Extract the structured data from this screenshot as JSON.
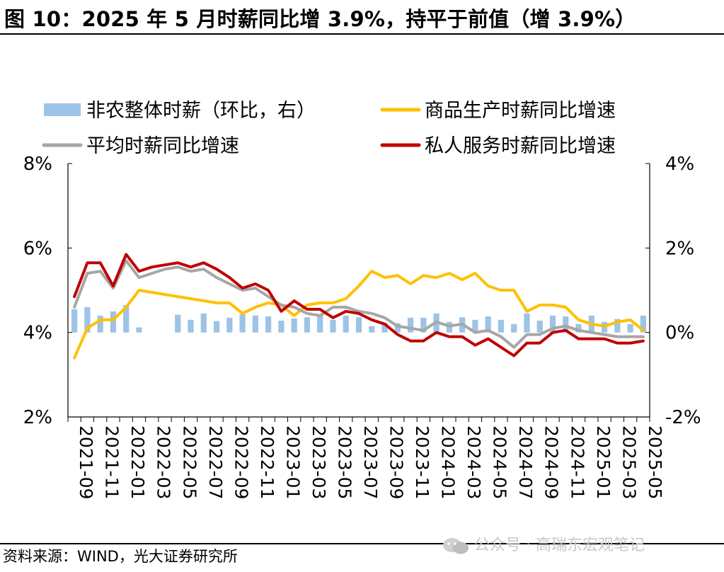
{
  "title": "图 10：2025 年 5 月时薪同比增 3.9%，持平于前值（增 3.9%）",
  "source": "资料来源：WIND，光大证券研究所",
  "watermark": "公众号 · 高瑞东宏观笔记",
  "colors": {
    "bar": "#9dc3e6",
    "goods": "#ffc000",
    "average": "#a6a6a6",
    "private_services": "#c00000"
  },
  "chart_data": {
    "type": "bar+line",
    "x": [
      "2021-09",
      "2021-10",
      "2021-11",
      "2021-12",
      "2022-01",
      "2022-02",
      "2022-03",
      "2022-04",
      "2022-05",
      "2022-06",
      "2022-07",
      "2022-08",
      "2022-09",
      "2022-10",
      "2022-11",
      "2022-12",
      "2023-01",
      "2023-02",
      "2023-03",
      "2023-04",
      "2023-05",
      "2023-06",
      "2023-07",
      "2023-08",
      "2023-09",
      "2023-10",
      "2023-11",
      "2023-12",
      "2024-01",
      "2024-02",
      "2024-03",
      "2024-04",
      "2024-05",
      "2024-06",
      "2024-07",
      "2024-08",
      "2024-09",
      "2024-10",
      "2024-11",
      "2024-12",
      "2025-01",
      "2025-02",
      "2025-03",
      "2025-04",
      "2025-05"
    ],
    "x_tick_labels": [
      "2021-09",
      "2021-11",
      "2022-01",
      "2022-03",
      "2022-05",
      "2022-07",
      "2022-09",
      "2022-11",
      "2023-01",
      "2023-03",
      "2023-05",
      "2023-07",
      "2023-09",
      "2023-11",
      "2024-01",
      "2024-03",
      "2024-05",
      "2024-07",
      "2024-09",
      "2024-11",
      "2025-01",
      "2025-03",
      "2025-05"
    ],
    "left_axis": {
      "ylim": [
        2,
        8
      ],
      "ticks": [
        "8%",
        "6%",
        "4%",
        "2%"
      ],
      "tick_values": [
        8,
        6,
        4,
        2
      ]
    },
    "right_axis": {
      "ylim": [
        -2,
        4
      ],
      "ticks": [
        "4%",
        "2%",
        "0%",
        "-2%"
      ],
      "tick_values": [
        4,
        2,
        0,
        -2
      ]
    },
    "legend": [
      {
        "label": "非农整体时薪（环比，右）",
        "kind": "bar",
        "series": "mom"
      },
      {
        "label": "商品生产时薪同比增速",
        "kind": "line",
        "series": "goods"
      },
      {
        "label": "平均时薪同比增速",
        "kind": "line",
        "series": "average"
      },
      {
        "label": "私人服务时薪同比增速",
        "kind": "line",
        "series": "private_services"
      }
    ],
    "series": [
      {
        "id": "mom",
        "type": "bar",
        "axis": "right",
        "values": [
          0.55,
          0.6,
          0.4,
          0.5,
          0.65,
          0.12,
          0.0,
          0.0,
          0.42,
          0.3,
          0.45,
          0.27,
          0.35,
          0.43,
          0.4,
          0.38,
          0.28,
          0.33,
          0.36,
          0.4,
          0.3,
          0.4,
          0.36,
          0.15,
          0.23,
          0.22,
          0.35,
          0.35,
          0.45,
          0.25,
          0.36,
          0.3,
          0.38,
          0.3,
          0.2,
          0.45,
          0.28,
          0.4,
          0.38,
          0.2,
          0.4,
          0.25,
          0.32,
          0.2,
          0.4
        ]
      },
      {
        "id": "goods",
        "type": "line",
        "axis": "left",
        "values": [
          3.4,
          4.1,
          4.3,
          4.3,
          4.6,
          5.0,
          4.95,
          4.9,
          4.85,
          4.8,
          4.75,
          4.7,
          4.7,
          4.45,
          4.6,
          4.7,
          4.65,
          4.4,
          4.65,
          4.7,
          4.7,
          4.8,
          5.1,
          5.45,
          5.3,
          5.35,
          5.15,
          5.35,
          5.3,
          5.4,
          5.25,
          5.4,
          5.1,
          5.0,
          5.0,
          4.5,
          4.65,
          4.65,
          4.6,
          4.3,
          4.2,
          4.15,
          4.25,
          4.3,
          4.05
        ]
      },
      {
        "id": "average",
        "type": "line",
        "axis": "left",
        "values": [
          4.6,
          5.4,
          5.45,
          5.05,
          5.7,
          5.3,
          5.4,
          5.5,
          5.55,
          5.45,
          5.5,
          5.3,
          5.15,
          5.0,
          5.05,
          4.85,
          4.65,
          4.6,
          4.45,
          4.4,
          4.6,
          4.6,
          4.5,
          4.45,
          4.35,
          4.15,
          4.1,
          4.05,
          4.25,
          4.15,
          4.2,
          4.0,
          4.05,
          3.9,
          3.65,
          3.95,
          3.95,
          4.1,
          4.15,
          4.05,
          4.0,
          3.95,
          3.9,
          3.9,
          3.9
        ]
      },
      {
        "id": "private_services",
        "type": "line",
        "axis": "left",
        "values": [
          4.85,
          5.65,
          5.65,
          5.1,
          5.85,
          5.45,
          5.55,
          5.6,
          5.65,
          5.55,
          5.65,
          5.5,
          5.3,
          5.05,
          5.15,
          5.0,
          4.5,
          4.75,
          4.55,
          4.55,
          4.35,
          4.5,
          4.45,
          4.3,
          4.2,
          3.95,
          3.8,
          3.8,
          4.0,
          3.9,
          3.9,
          3.7,
          3.85,
          3.65,
          3.45,
          3.75,
          3.75,
          4.0,
          4.05,
          3.85,
          3.85,
          3.85,
          3.75,
          3.75,
          3.8
        ]
      }
    ]
  }
}
